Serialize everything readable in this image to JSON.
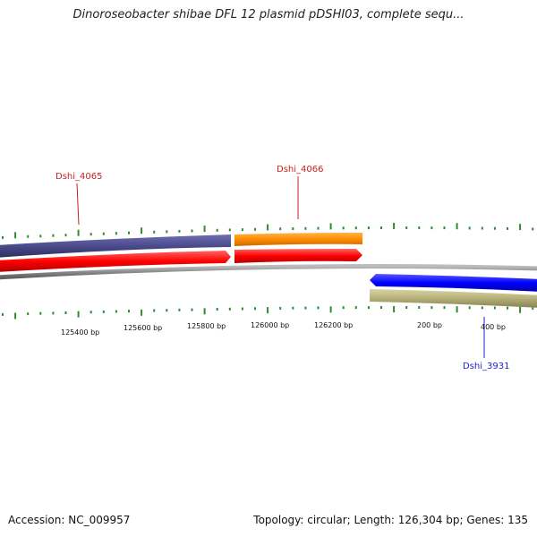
{
  "title": "Dinoroseobacter shibae DFL 12 plasmid pDSHI03, complete sequ...",
  "footer": {
    "accession": "Accession: NC_009957",
    "summary": "Topology: circular; Length: 126,304 bp; Genes: 135"
  },
  "colors": {
    "tick": "#2e8b2e",
    "backbone": "#8c8c8c",
    "gene_label_forward": "#cc1f1f",
    "gene_label_reverse": "#1f1fcc"
  },
  "map": {
    "scale_labels": [
      "125400 bp",
      "125600 bp",
      "125800 bp",
      "126000 bp",
      "126200 bp",
      "200 bp",
      "400 bp"
    ],
    "tracks": [
      {
        "name": "cog-track-left",
        "color": "#4a4a8c",
        "strand": "forward"
      },
      {
        "name": "cog-track-middle",
        "color": "#ff8c00",
        "strand": "forward"
      },
      {
        "name": "cds-track-left",
        "color": "#ff0000",
        "strand": "forward"
      },
      {
        "name": "cds-track-middle",
        "color": "#ff0000",
        "strand": "forward"
      },
      {
        "name": "cds-track-right",
        "color": "#0000ff",
        "strand": "reverse"
      },
      {
        "name": "cog-track-right",
        "color": "#b5b07a",
        "strand": "reverse"
      }
    ],
    "gene_labels": [
      {
        "text": "Dshi_4065",
        "strand": "forward"
      },
      {
        "text": "Dshi_4066",
        "strand": "forward"
      },
      {
        "text": "Dshi_3931",
        "strand": "reverse"
      }
    ]
  }
}
